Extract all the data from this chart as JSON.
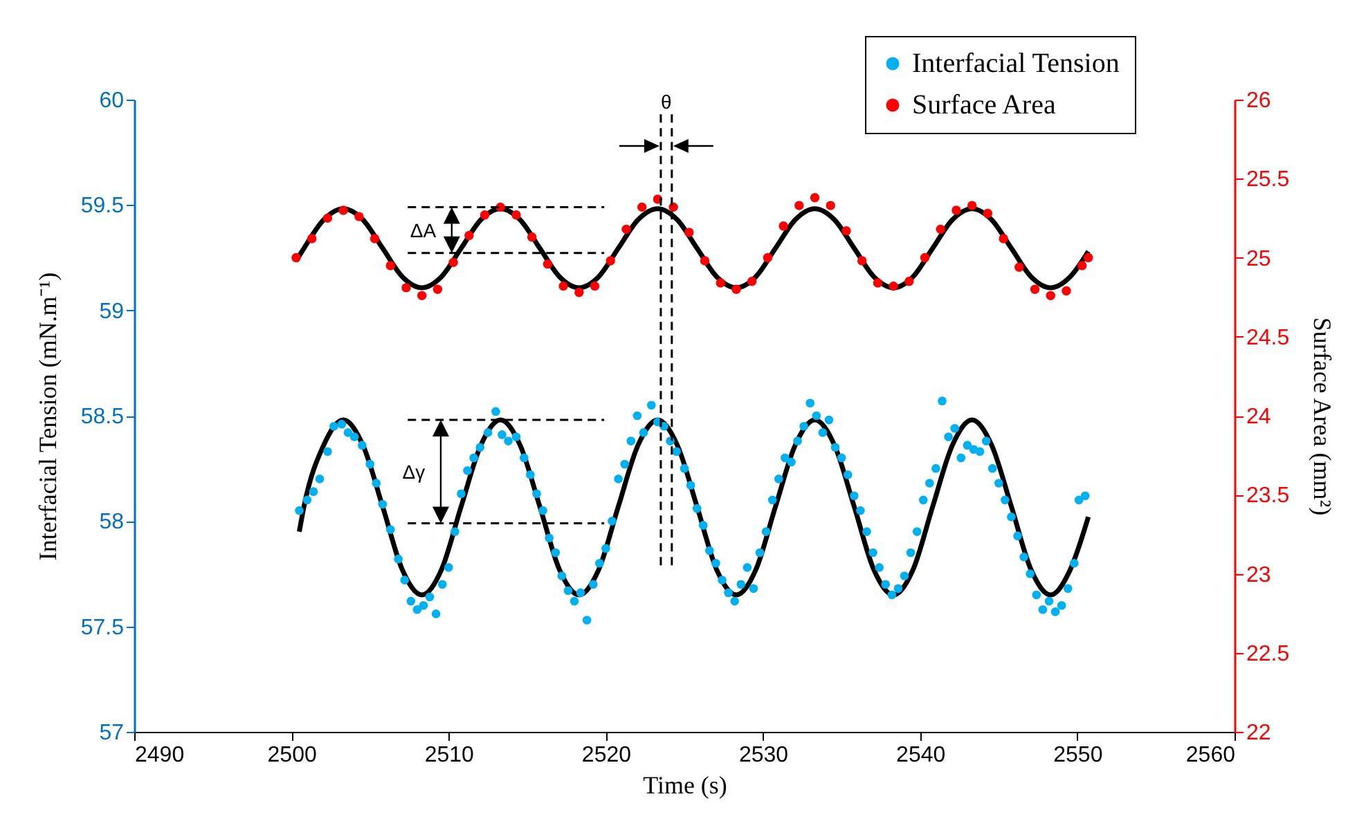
{
  "chart_data": {
    "type": "scatter",
    "xlabel": "Time (s)",
    "ylabel": "Interfacial Tension (mN.m⁻¹)",
    "y2label": "Surface Area (mm²)",
    "xlim": [
      2490,
      2560
    ],
    "xticks": [
      2490,
      2500,
      2510,
      2520,
      2530,
      2540,
      2550,
      2560
    ],
    "ylim": [
      57,
      60
    ],
    "yticks": [
      57,
      57.5,
      58,
      58.5,
      59,
      59.5,
      60
    ],
    "y2lim": [
      22,
      26
    ],
    "y2ticks": [
      22,
      22.5,
      23,
      23.5,
      24,
      24.5,
      25,
      25.5,
      26
    ],
    "grid": false,
    "legend": "top right",
    "annotations": [
      "ΔA",
      "Δγ",
      "θ"
    ],
    "series": [
      {
        "name": "Interfacial Tension",
        "marker": "circle",
        "color": "#00b0f0",
        "x": [
          2500.5,
          2501.0,
          2501.4,
          2501.8,
          2502.3,
          2502.7,
          2503.2,
          2503.6,
          2504.0,
          2504.5,
          2505.0,
          2505.4,
          2505.8,
          2506.3,
          2506.8,
          2507.2,
          2507.6,
          2508.0,
          2508.4,
          2508.8,
          2509.2,
          2509.6,
          2510.0,
          2510.4,
          2510.8,
          2511.2,
          2511.6,
          2512.0,
          2512.5,
          2513.0,
          2513.4,
          2513.8,
          2514.3,
          2514.8,
          2515.2,
          2515.6,
          2516.0,
          2516.4,
          2516.8,
          2517.2,
          2517.6,
          2518.0,
          2518.4,
          2518.8,
          2519.2,
          2519.6,
          2520.0,
          2520.4,
          2520.8,
          2521.2,
          2521.6,
          2522.0,
          2522.4,
          2522.9,
          2523.3,
          2523.7,
          2524.1,
          2524.5,
          2525.0,
          2525.4,
          2525.8,
          2526.2,
          2526.6,
          2527.0,
          2527.4,
          2527.8,
          2528.2,
          2528.6,
          2529.0,
          2529.4,
          2529.8,
          2530.2,
          2530.6,
          2531.0,
          2531.4,
          2531.8,
          2532.2,
          2532.6,
          2533.0,
          2533.4,
          2533.8,
          2534.2,
          2534.6,
          2535.0,
          2535.4,
          2535.8,
          2536.2,
          2536.6,
          2537.0,
          2537.4,
          2537.8,
          2538.2,
          2538.6,
          2539.0,
          2539.4,
          2539.8,
          2540.2,
          2540.6,
          2541.0,
          2541.4,
          2541.8,
          2542.2,
          2542.6,
          2543.0,
          2543.4,
          2543.8,
          2544.2,
          2544.6,
          2545.0,
          2545.4,
          2545.8,
          2546.2,
          2546.6,
          2547.0,
          2547.4,
          2547.8,
          2548.2,
          2548.6,
          2549.0,
          2549.4,
          2549.8,
          2550.1,
          2550.5
        ],
        "values": [
          58.05,
          58.1,
          58.14,
          58.2,
          58.33,
          58.45,
          58.46,
          58.42,
          58.4,
          58.36,
          58.27,
          58.18,
          58.08,
          57.96,
          57.82,
          57.72,
          57.62,
          57.58,
          57.6,
          57.64,
          57.56,
          57.7,
          57.78,
          57.95,
          58.13,
          58.24,
          58.3,
          58.35,
          58.42,
          58.52,
          58.41,
          58.38,
          58.4,
          58.3,
          58.22,
          58.13,
          58.05,
          57.92,
          57.85,
          57.74,
          57.67,
          57.62,
          57.66,
          57.53,
          57.7,
          57.8,
          57.87,
          58.0,
          58.2,
          58.27,
          58.38,
          58.5,
          58.42,
          58.55,
          58.47,
          58.45,
          58.38,
          58.33,
          58.25,
          58.17,
          58.06,
          57.98,
          57.86,
          57.8,
          57.72,
          57.66,
          57.62,
          57.7,
          57.78,
          57.68,
          57.85,
          57.95,
          58.1,
          58.2,
          58.3,
          58.28,
          58.38,
          58.45,
          58.56,
          58.5,
          58.42,
          58.48,
          58.35,
          58.3,
          58.22,
          58.12,
          58.05,
          57.95,
          57.85,
          57.78,
          57.7,
          57.65,
          57.68,
          57.74,
          57.85,
          57.95,
          58.1,
          58.18,
          58.25,
          58.57,
          58.4,
          58.44,
          58.3,
          58.36,
          58.34,
          58.33,
          58.38,
          58.25,
          58.18,
          58.1,
          58.02,
          57.93,
          57.83,
          57.75,
          57.65,
          57.58,
          57.62,
          57.57,
          57.6,
          57.68,
          57.8,
          58.1,
          58.12
        ]
      },
      {
        "name": "Surface Area",
        "marker": "circle",
        "axis": "y2",
        "color": "#ff0000",
        "x": [
          2500.3,
          2501.3,
          2502.3,
          2503.3,
          2504.3,
          2505.3,
          2506.3,
          2507.3,
          2508.3,
          2509.3,
          2510.3,
          2511.3,
          2512.3,
          2513.3,
          2514.3,
          2515.3,
          2516.3,
          2517.3,
          2518.3,
          2519.3,
          2520.3,
          2521.3,
          2522.3,
          2523.3,
          2524.3,
          2525.3,
          2526.3,
          2527.3,
          2528.3,
          2529.3,
          2530.3,
          2531.3,
          2532.3,
          2533.3,
          2534.3,
          2535.3,
          2536.3,
          2537.3,
          2538.3,
          2539.3,
          2540.3,
          2541.3,
          2542.3,
          2543.3,
          2544.3,
          2545.3,
          2546.3,
          2547.3,
          2548.3,
          2549.3,
          2550.3,
          2550.7
        ],
        "values": [
          25.0,
          25.12,
          25.25,
          25.3,
          25.26,
          25.12,
          24.95,
          24.81,
          24.76,
          24.8,
          24.97,
          25.14,
          25.27,
          25.32,
          25.27,
          25.13,
          24.96,
          24.82,
          24.78,
          24.82,
          24.98,
          25.18,
          25.32,
          25.37,
          25.32,
          25.16,
          24.98,
          24.84,
          24.8,
          24.85,
          25.0,
          25.2,
          25.33,
          25.38,
          25.33,
          25.17,
          24.98,
          24.84,
          24.82,
          24.85,
          25.0,
          25.18,
          25.3,
          25.33,
          25.28,
          25.12,
          24.94,
          24.8,
          24.76,
          24.79,
          24.95,
          25.0
        ]
      },
      {
        "type": "line",
        "color": "#000000",
        "x": [
          2500.5,
          2500.8,
          2502.05,
          2503.3,
          2504.55,
          2505.8,
          2507.05,
          2508.3,
          2509.55,
          2510.8,
          2512.05,
          2513.3,
          2514.55,
          2515.8,
          2517.05,
          2518.3,
          2519.55,
          2520.8,
          2522.05,
          2523.3,
          2524.55,
          2525.8,
          2527.05,
          2528.3,
          2529.55,
          2530.8,
          2532.05,
          2533.3,
          2534.55,
          2535.8,
          2537.05,
          2538.3,
          2539.55,
          2540.8,
          2542.05,
          2543.3,
          2544.55,
          2545.8,
          2547.05,
          2548.3,
          2549.55,
          2550.7
        ],
        "values": [
          57.95,
          58.07,
          58.36,
          58.48,
          58.36,
          58.07,
          57.77,
          57.65,
          57.77,
          58.07,
          58.36,
          58.48,
          58.36,
          58.07,
          57.77,
          57.65,
          57.77,
          58.07,
          58.36,
          58.48,
          58.36,
          58.07,
          57.77,
          57.65,
          57.77,
          58.07,
          58.36,
          58.48,
          58.36,
          58.07,
          57.77,
          57.65,
          57.77,
          58.07,
          58.36,
          58.48,
          58.36,
          58.07,
          57.77,
          57.65,
          57.77,
          58.02
        ]
      },
      {
        "type": "line",
        "axis": "y2",
        "color": "#000000",
        "x": [
          2500.3,
          2500.8,
          2502.05,
          2503.3,
          2504.55,
          2505.8,
          2507.05,
          2508.3,
          2509.55,
          2510.8,
          2512.05,
          2513.3,
          2514.55,
          2515.8,
          2517.05,
          2518.3,
          2519.55,
          2520.8,
          2522.05,
          2523.3,
          2524.55,
          2525.8,
          2527.05,
          2528.3,
          2529.55,
          2530.8,
          2532.05,
          2533.3,
          2534.55,
          2535.8,
          2537.05,
          2538.3,
          2539.55,
          2540.8,
          2542.05,
          2543.3,
          2544.55,
          2545.8,
          2547.05,
          2548.3,
          2549.55,
          2550.7
        ],
        "values": [
          24.98,
          25.06,
          25.24,
          25.31,
          25.24,
          25.06,
          24.88,
          24.81,
          24.88,
          25.06,
          25.24,
          25.31,
          25.24,
          25.06,
          24.88,
          24.81,
          24.88,
          25.06,
          25.24,
          25.31,
          25.24,
          25.06,
          24.88,
          24.81,
          24.88,
          25.06,
          25.24,
          25.31,
          25.24,
          25.06,
          24.88,
          24.81,
          24.88,
          25.06,
          25.24,
          25.31,
          25.24,
          25.06,
          24.88,
          24.81,
          24.88,
          25.04
        ]
      }
    ]
  }
}
